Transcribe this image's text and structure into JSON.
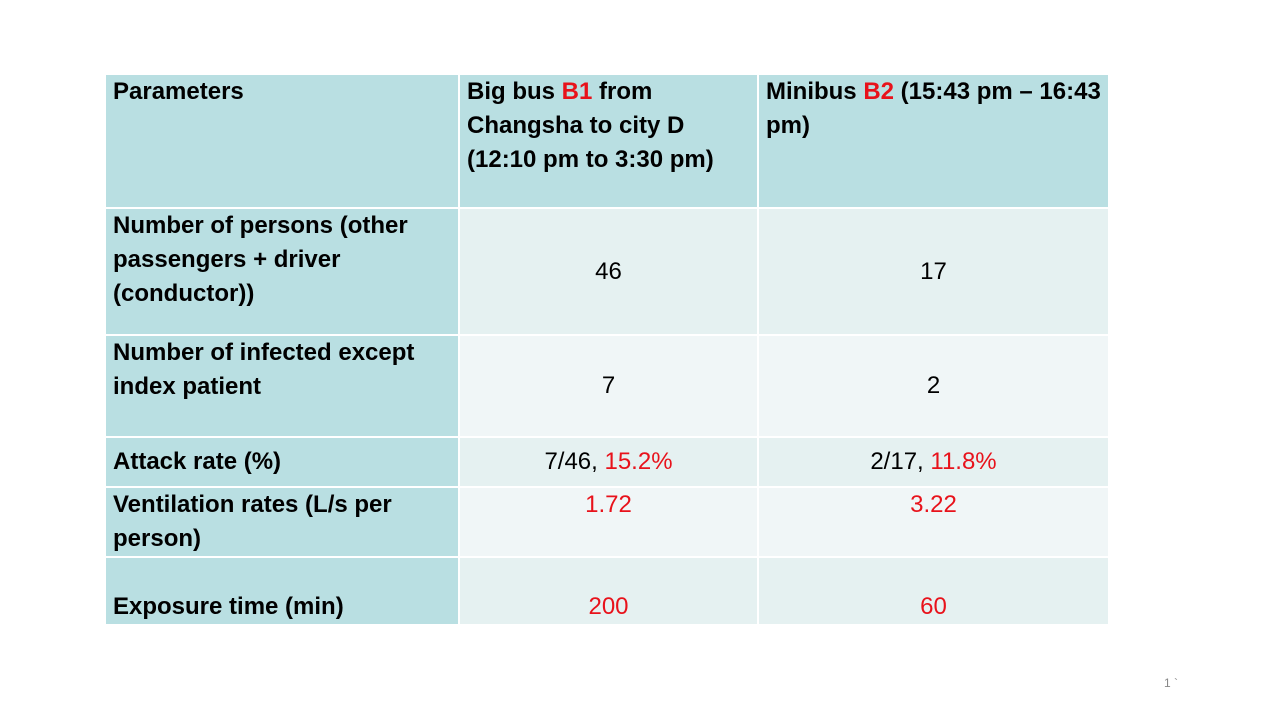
{
  "table": {
    "header": [
      [
        "Parameters"
      ],
      [
        "Big bus ",
        "B1",
        " from Changsha to city D (12:10 pm to 3:30 pm)"
      ],
      [
        "Minibus ",
        "B2",
        " (15:43 pm – 16:43 pm)"
      ]
    ],
    "rows": [
      [
        "Number of persons (other passengers + driver (conductor))",
        46,
        17
      ],
      [
        "Number of infected except index patient",
        7,
        2
      ],
      [
        "Attack rate (%)",
        [
          "7/46, ",
          "15.2%"
        ],
        [
          "2/17, ",
          "11.8%"
        ]
      ],
      [
        "Ventilation rates (L/s per person)",
        1.72,
        3.22
      ],
      [
        "Exposure time (min)",
        200,
        60
      ]
    ]
  },
  "page_number": "1 `"
}
